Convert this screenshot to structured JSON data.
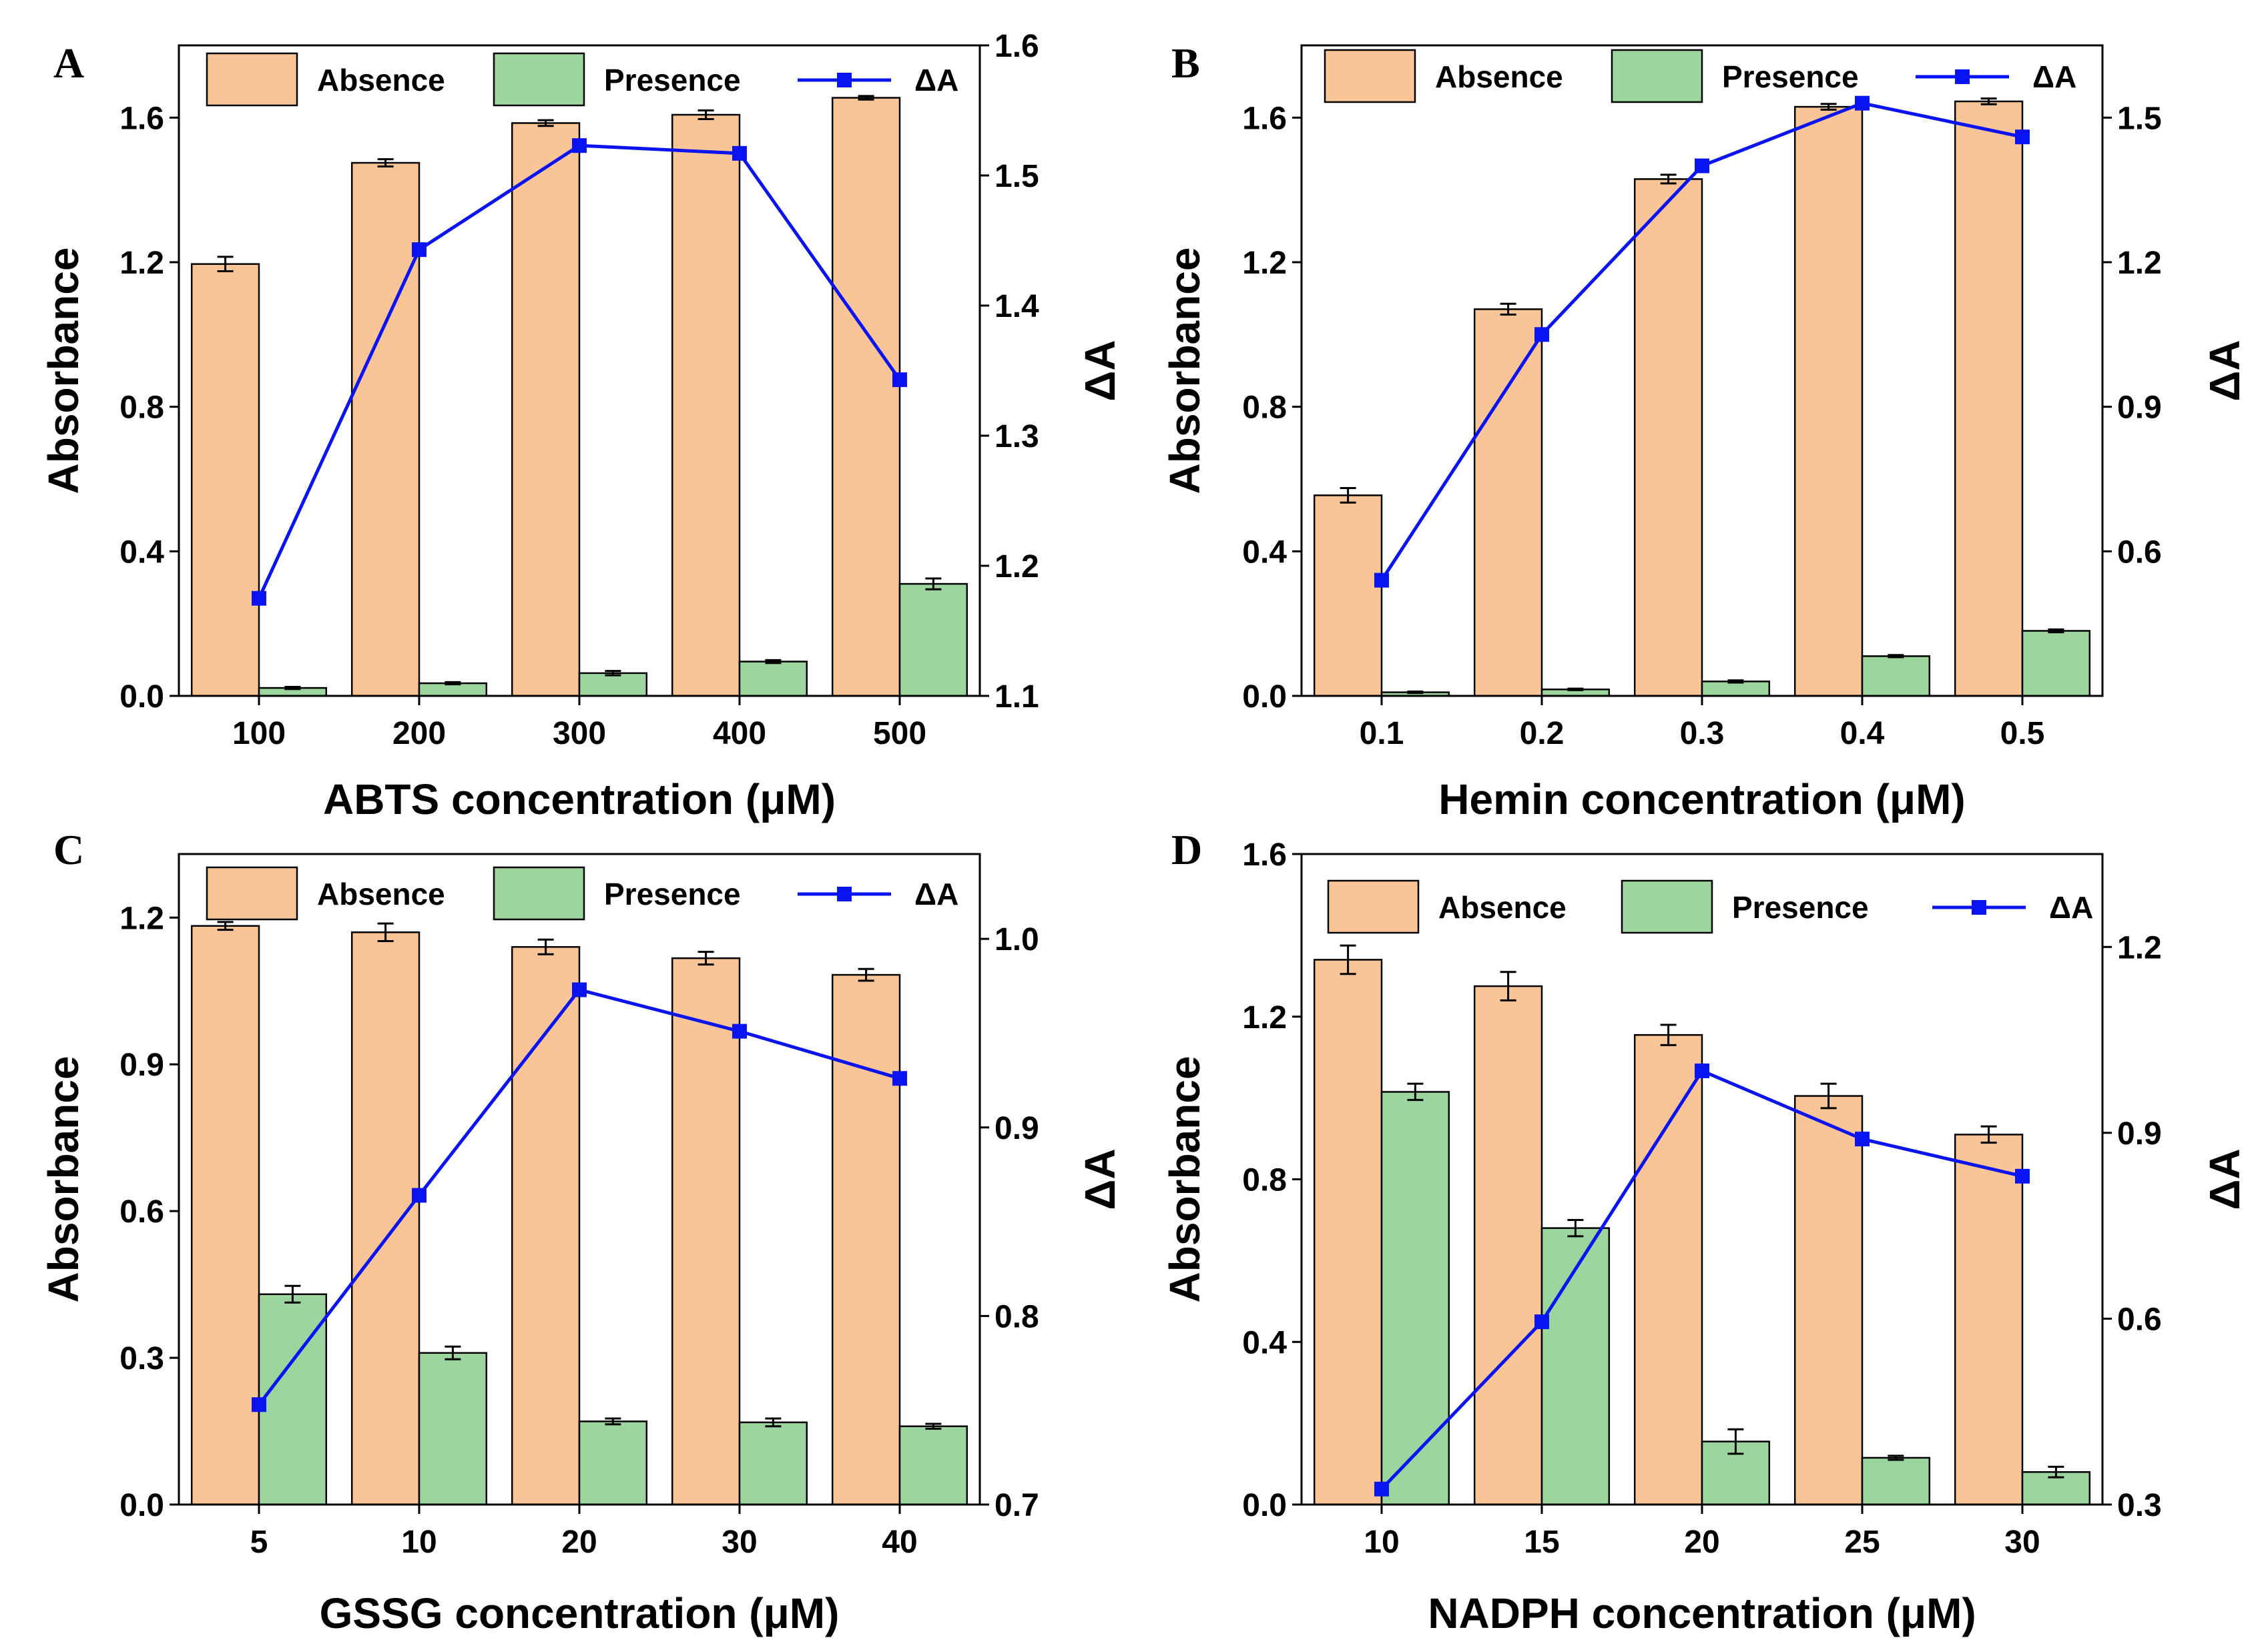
{
  "colors": {
    "absence_fill": "#F9C597",
    "presence_fill": "#9CD69E",
    "delta_line": "#0A14F0",
    "bar_stroke": "#000000"
  },
  "chart_data": [
    {
      "panel": "A",
      "type": "bar",
      "categories": [
        "100",
        "200",
        "300",
        "400",
        "500"
      ],
      "xlabel": "ABTS concentration (μM)",
      "ylabel": "Absorbance",
      "y2label": "ΔA",
      "ylim": [
        0,
        1.8
      ],
      "yticks": [
        0.0,
        0.4,
        0.8,
        1.2,
        1.6
      ],
      "ytick_labels": [
        "0.0",
        "0.4",
        "0.8",
        "1.2",
        "1.6"
      ],
      "y2lim": [
        1.1,
        1.6
      ],
      "y2ticks": [
        1.1,
        1.2,
        1.3,
        1.4,
        1.5,
        1.6
      ],
      "y2tick_labels": [
        "1.1",
        "1.2",
        "1.3",
        "1.4",
        "1.5",
        "1.6"
      ],
      "legend": [
        "Absence",
        "Presence",
        "ΔA"
      ],
      "series": [
        {
          "name": "Absence",
          "values": [
            1.195,
            1.475,
            1.585,
            1.608,
            1.655
          ],
          "errors": [
            0.02,
            0.01,
            0.008,
            0.012,
            0.005
          ]
        },
        {
          "name": "Presence",
          "values": [
            0.022,
            0.035,
            0.063,
            0.095,
            0.31
          ],
          "errors": [
            0.003,
            0.003,
            0.006,
            0.004,
            0.015
          ]
        },
        {
          "name": "ΔA",
          "axis": "right",
          "values": [
            1.175,
            1.443,
            1.523,
            1.517,
            1.343
          ]
        }
      ]
    },
    {
      "panel": "B",
      "type": "bar",
      "categories": [
        "0.1",
        "0.2",
        "0.3",
        "0.4",
        "0.5"
      ],
      "xlabel": "Hemin concentration (μM)",
      "ylabel": "Absorbance",
      "y2label": "ΔA",
      "ylim": [
        0,
        1.8
      ],
      "yticks": [
        0.0,
        0.4,
        0.8,
        1.2,
        1.6
      ],
      "ytick_labels": [
        "0.0",
        "0.4",
        "0.8",
        "1.2",
        "1.6"
      ],
      "y2lim": [
        0.3,
        1.65
      ],
      "y2ticks": [
        0.6,
        0.9,
        1.2,
        1.5
      ],
      "y2tick_labels": [
        "0.6",
        "0.9",
        "1.2",
        "1.5"
      ],
      "legend": [
        "Absence",
        "Presence",
        "ΔA"
      ],
      "series": [
        {
          "name": "Absence",
          "values": [
            0.555,
            1.07,
            1.43,
            1.63,
            1.645
          ],
          "errors": [
            0.02,
            0.015,
            0.012,
            0.008,
            0.008
          ]
        },
        {
          "name": "Presence",
          "values": [
            0.01,
            0.018,
            0.04,
            0.11,
            0.18
          ],
          "errors": [
            0.002,
            0.002,
            0.003,
            0.003,
            0.004
          ]
        },
        {
          "name": "ΔA",
          "axis": "right",
          "values": [
            0.54,
            1.05,
            1.4,
            1.53,
            1.46
          ]
        }
      ]
    },
    {
      "panel": "C",
      "type": "bar",
      "categories": [
        "5",
        "10",
        "20",
        "30",
        "40"
      ],
      "xlabel": "GSSG concentration (μM)",
      "ylabel": "Absorbance",
      "y2label": "ΔA",
      "ylim": [
        0,
        1.33
      ],
      "yticks": [
        0.0,
        0.3,
        0.6,
        0.9,
        1.2
      ],
      "ytick_labels": [
        "0.0",
        "0.3",
        "0.6",
        "0.9",
        "1.2"
      ],
      "y2lim": [
        0.7,
        1.045
      ],
      "y2ticks": [
        0.7,
        0.8,
        0.9,
        1.0
      ],
      "y2tick_labels": [
        "0.7",
        "0.8",
        "0.9",
        "1.0"
      ],
      "legend": [
        "Absence",
        "Presence",
        "ΔA"
      ],
      "series": [
        {
          "name": "Absence",
          "values": [
            1.183,
            1.17,
            1.14,
            1.117,
            1.083
          ],
          "errors": [
            0.008,
            0.018,
            0.015,
            0.013,
            0.012
          ]
        },
        {
          "name": "Presence",
          "values": [
            0.43,
            0.31,
            0.17,
            0.168,
            0.16
          ],
          "errors": [
            0.017,
            0.013,
            0.006,
            0.008,
            0.005
          ]
        },
        {
          "name": "ΔA",
          "axis": "right",
          "values": [
            0.753,
            0.864,
            0.973,
            0.951,
            0.926
          ]
        }
      ]
    },
    {
      "panel": "D",
      "type": "bar",
      "categories": [
        "10",
        "15",
        "20",
        "25",
        "30"
      ],
      "xlabel": "NADPH  concentration (μM)",
      "ylabel": "Absorbance",
      "y2label": "ΔA",
      "ylim": [
        0,
        1.6
      ],
      "yticks": [
        0.0,
        0.4,
        0.8,
        1.2,
        1.6
      ],
      "ytick_labels": [
        "0.0",
        "0.4",
        "0.8",
        "1.2",
        "1.6"
      ],
      "y2lim": [
        0.3,
        1.35
      ],
      "y2ticks": [
        0.3,
        0.6,
        0.9,
        1.2
      ],
      "y2tick_labels": [
        "0.3",
        "0.6",
        "0.9",
        "1.2"
      ],
      "legend": [
        "Absence",
        "Presence",
        "ΔA"
      ],
      "series": [
        {
          "name": "Absence",
          "values": [
            1.34,
            1.275,
            1.155,
            1.005,
            0.91
          ],
          "errors": [
            0.035,
            0.035,
            0.025,
            0.03,
            0.02
          ]
        },
        {
          "name": "Presence",
          "values": [
            1.015,
            0.68,
            0.155,
            0.115,
            0.08
          ],
          "errors": [
            0.02,
            0.02,
            0.03,
            0.005,
            0.013
          ]
        },
        {
          "name": "ΔA",
          "axis": "right",
          "values": [
            0.325,
            0.595,
            1.0,
            0.89,
            0.83
          ]
        }
      ]
    }
  ]
}
